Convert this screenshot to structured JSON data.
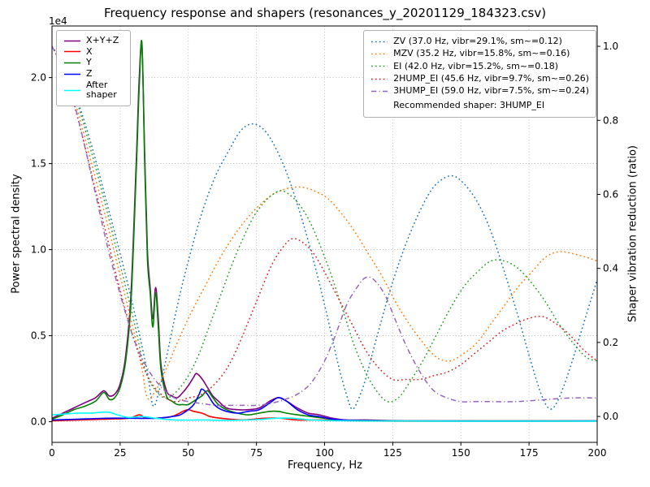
{
  "chart_data": {
    "type": "line",
    "title": "Frequency response and shapers (resonances_y_20201129_184323.csv)",
    "xlabel": "Frequency, Hz",
    "ylabel": "Power spectral density",
    "ylabel2": "Shaper vibration reduction (ratio)",
    "y_offset_label": "1e4",
    "recommended_shaper_note": "Recommended shaper: 3HUMP_EI",
    "axes": {
      "xlim": [
        0,
        200
      ],
      "ylim_left": [
        -0.12,
        2.3
      ],
      "ylim_right": [
        -0.07,
        1.055
      ],
      "psd_unit_multiplier": 10000,
      "grid": true,
      "x_ticks": [
        {
          "v": 0,
          "label": "0"
        },
        {
          "v": 25,
          "label": "25"
        },
        {
          "v": 50,
          "label": "50"
        },
        {
          "v": 75,
          "label": "75"
        },
        {
          "v": 100,
          "label": "100"
        },
        {
          "v": 125,
          "label": "125"
        },
        {
          "v": 150,
          "label": "150"
        },
        {
          "v": 175,
          "label": "175"
        },
        {
          "v": 200,
          "label": "200"
        }
      ],
      "y_ticks_left": [
        {
          "v": 0,
          "label": "0.0"
        },
        {
          "v": 0.5,
          "label": "0.5"
        },
        {
          "v": 1,
          "label": "1.0"
        },
        {
          "v": 1.5,
          "label": "1.5"
        },
        {
          "v": 2,
          "label": "2.0"
        }
      ],
      "y_ticks_right": [
        {
          "v": 0,
          "label": "0.0"
        },
        {
          "v": 0.2,
          "label": "0.2"
        },
        {
          "v": 0.4,
          "label": "0.4"
        },
        {
          "v": 0.6,
          "label": "0.6"
        },
        {
          "v": 0.8,
          "label": "0.8"
        },
        {
          "v": 1,
          "label": "1.0"
        }
      ]
    },
    "series": [
      {
        "name": "X+Y+Z",
        "legend": "X+Y+Z",
        "axis": "left",
        "color": "#800080",
        "style": "solid",
        "x": [
          0,
          4,
          8,
          12,
          16,
          19,
          21,
          23,
          25,
          27,
          29,
          31,
          32,
          33,
          34,
          35,
          36,
          37,
          38,
          39,
          40,
          42,
          44,
          46,
          48,
          50,
          52,
          53,
          55,
          57,
          59,
          61,
          64,
          68,
          72,
          76,
          80,
          83,
          86,
          90,
          94,
          98,
          103,
          108,
          115,
          130,
          160,
          200
        ],
        "y": [
          0.02,
          0.05,
          0.08,
          0.11,
          0.14,
          0.18,
          0.15,
          0.16,
          0.22,
          0.38,
          0.75,
          1.55,
          2.0,
          2.18,
          1.55,
          1.0,
          0.78,
          0.6,
          0.78,
          0.6,
          0.33,
          0.18,
          0.15,
          0.14,
          0.17,
          0.21,
          0.26,
          0.28,
          0.25,
          0.2,
          0.15,
          0.12,
          0.08,
          0.07,
          0.07,
          0.08,
          0.12,
          0.14,
          0.12,
          0.08,
          0.05,
          0.04,
          0.02,
          0.01,
          0.01,
          0.005,
          0.005,
          0.005
        ]
      },
      {
        "name": "X",
        "legend": "X",
        "axis": "left",
        "color": "#ff0000",
        "style": "solid",
        "x": [
          0,
          10,
          20,
          28,
          32,
          34,
          38,
          44,
          48,
          50,
          52,
          55,
          58,
          62,
          70,
          78,
          84,
          90,
          100,
          110,
          130,
          200
        ],
        "y": [
          0.005,
          0.01,
          0.015,
          0.02,
          0.04,
          0.025,
          0.02,
          0.03,
          0.06,
          0.07,
          0.06,
          0.05,
          0.03,
          0.02,
          0.01,
          0.02,
          0.02,
          0.01,
          0.01,
          0.005,
          0.003,
          0.003
        ]
      },
      {
        "name": "Y",
        "legend": "Y",
        "axis": "left",
        "color": "#008000",
        "style": "solid",
        "x": [
          0,
          4,
          8,
          12,
          16,
          19,
          21,
          23,
          25,
          27,
          29,
          31,
          32,
          33,
          34,
          35,
          36,
          37,
          38,
          39,
          40,
          42,
          44,
          46,
          48,
          50,
          53,
          55,
          57,
          59,
          61,
          64,
          68,
          72,
          76,
          80,
          83,
          86,
          90,
          95,
          100,
          105,
          110,
          120,
          140,
          170,
          200
        ],
        "y": [
          0.015,
          0.04,
          0.07,
          0.09,
          0.12,
          0.17,
          0.13,
          0.14,
          0.2,
          0.35,
          0.7,
          1.5,
          1.95,
          2.2,
          1.5,
          0.95,
          0.75,
          0.55,
          0.75,
          0.55,
          0.3,
          0.15,
          0.12,
          0.1,
          0.1,
          0.1,
          0.13,
          0.15,
          0.18,
          0.14,
          0.1,
          0.07,
          0.05,
          0.04,
          0.05,
          0.06,
          0.06,
          0.05,
          0.04,
          0.03,
          0.02,
          0.01,
          0.008,
          0.005,
          0.004,
          0.004,
          0.004
        ]
      },
      {
        "name": "Z",
        "legend": "Z",
        "axis": "left",
        "color": "#0000ff",
        "style": "solid",
        "x": [
          0,
          10,
          20,
          30,
          38,
          44,
          47,
          50,
          52,
          54,
          55,
          57,
          59,
          61,
          64,
          68,
          72,
          76,
          80,
          83,
          86,
          90,
          94,
          98,
          103,
          110,
          130,
          200
        ],
        "y": [
          0.01,
          0.015,
          0.02,
          0.02,
          0.02,
          0.03,
          0.04,
          0.07,
          0.1,
          0.16,
          0.19,
          0.16,
          0.11,
          0.08,
          0.06,
          0.05,
          0.06,
          0.07,
          0.11,
          0.14,
          0.12,
          0.07,
          0.04,
          0.03,
          0.015,
          0.008,
          0.004,
          0.004
        ]
      },
      {
        "name": "After shaper",
        "legend": "After shaper",
        "axis": "left",
        "color": "#00ffff",
        "style": "solid",
        "x": [
          0,
          5,
          10,
          14,
          18,
          21,
          24,
          28,
          33,
          38,
          45,
          55,
          65,
          75,
          82,
          88,
          95,
          105,
          120,
          150,
          200
        ],
        "y": [
          0.04,
          0.045,
          0.05,
          0.05,
          0.055,
          0.055,
          0.04,
          0.025,
          0.03,
          0.02,
          0.01,
          0.01,
          0.008,
          0.012,
          0.02,
          0.02,
          0.01,
          0.006,
          0.004,
          0.003,
          0.003
        ]
      },
      {
        "name": "ZV",
        "legend": "ZV (37.0 Hz, vibr=29.1%, sm~=0.12)",
        "axis": "right",
        "color": "#1f77b4",
        "style": "dotted",
        "x": [
          0,
          5,
          10,
          15,
          20,
          25,
          30,
          33,
          35,
          37,
          39,
          42,
          46,
          50,
          55,
          60,
          65,
          69,
          73,
          77,
          81,
          86,
          91,
          96,
          101,
          105,
          108,
          110,
          112,
          115,
          119,
          124,
          129,
          134,
          139,
          143,
          147,
          151,
          156,
          161,
          166,
          171,
          176,
          180,
          183,
          186,
          190,
          195,
          200
        ],
        "y": [
          1.0,
          0.94,
          0.84,
          0.72,
          0.58,
          0.44,
          0.29,
          0.19,
          0.12,
          0.03,
          0.06,
          0.16,
          0.3,
          0.42,
          0.55,
          0.65,
          0.72,
          0.77,
          0.79,
          0.78,
          0.74,
          0.66,
          0.55,
          0.42,
          0.27,
          0.14,
          0.06,
          0.02,
          0.04,
          0.1,
          0.21,
          0.34,
          0.45,
          0.54,
          0.61,
          0.64,
          0.65,
          0.63,
          0.58,
          0.5,
          0.39,
          0.27,
          0.14,
          0.05,
          0.02,
          0.05,
          0.13,
          0.25,
          0.37
        ]
      },
      {
        "name": "MZV",
        "legend": "MZV (35.2 Hz, vibr=15.8%, sm~=0.16)",
        "axis": "right",
        "color": "#ff7f0e",
        "style": "dotted",
        "x": [
          0,
          5,
          10,
          15,
          20,
          25,
          30,
          33,
          35,
          38,
          42,
          46,
          51,
          56,
          61,
          66,
          71,
          76,
          81,
          86,
          91,
          96,
          101,
          106,
          111,
          116,
          121,
          126,
          131,
          136,
          141,
          146,
          151,
          156,
          161,
          166,
          171,
          176,
          181,
          186,
          191,
          196,
          200
        ],
        "y": [
          1.0,
          0.93,
          0.81,
          0.67,
          0.53,
          0.38,
          0.23,
          0.13,
          0.05,
          0.07,
          0.13,
          0.2,
          0.28,
          0.35,
          0.42,
          0.48,
          0.53,
          0.57,
          0.6,
          0.615,
          0.62,
          0.61,
          0.59,
          0.55,
          0.5,
          0.44,
          0.38,
          0.31,
          0.25,
          0.2,
          0.16,
          0.15,
          0.17,
          0.2,
          0.25,
          0.3,
          0.35,
          0.39,
          0.43,
          0.445,
          0.44,
          0.43,
          0.42
        ]
      },
      {
        "name": "EI",
        "legend": "EI (42.0 Hz, vibr=15.2%, sm~=0.18)",
        "axis": "right",
        "color": "#2ca02c",
        "style": "dotted",
        "x": [
          0,
          5,
          10,
          15,
          20,
          25,
          30,
          34,
          38,
          42,
          46,
          50,
          54,
          58,
          62,
          66,
          70,
          74,
          78,
          81,
          84,
          87,
          91,
          95,
          99,
          103,
          107,
          111,
          115,
          119,
          123,
          127,
          131,
          136,
          141,
          146,
          151,
          156,
          161,
          166,
          171,
          176,
          181,
          186,
          191,
          196,
          200
        ],
        "y": [
          1.0,
          0.94,
          0.83,
          0.7,
          0.56,
          0.41,
          0.26,
          0.13,
          0.07,
          0.05,
          0.07,
          0.11,
          0.17,
          0.25,
          0.33,
          0.41,
          0.48,
          0.54,
          0.58,
          0.6,
          0.61,
          0.6,
          0.57,
          0.52,
          0.45,
          0.37,
          0.28,
          0.19,
          0.12,
          0.07,
          0.04,
          0.05,
          0.09,
          0.15,
          0.22,
          0.29,
          0.35,
          0.39,
          0.42,
          0.42,
          0.4,
          0.36,
          0.31,
          0.25,
          0.2,
          0.16,
          0.15
        ]
      },
      {
        "name": "2HUMP_EI",
        "legend": "2HUMP_EI (45.6 Hz, vibr=9.7%, sm~=0.26)",
        "axis": "right",
        "color": "#d62728",
        "style": "dotted",
        "x": [
          0,
          5,
          10,
          15,
          20,
          25,
          30,
          35,
          40,
          45,
          50,
          55,
          60,
          65,
          70,
          75,
          80,
          84,
          88,
          92,
          96,
          100,
          105,
          110,
          115,
          120,
          125,
          130,
          135,
          140,
          145,
          150,
          155,
          160,
          165,
          170,
          175,
          180,
          185,
          190,
          195,
          200
        ],
        "y": [
          1.0,
          0.92,
          0.79,
          0.64,
          0.49,
          0.34,
          0.21,
          0.11,
          0.06,
          0.04,
          0.05,
          0.06,
          0.09,
          0.14,
          0.22,
          0.31,
          0.4,
          0.45,
          0.48,
          0.47,
          0.44,
          0.39,
          0.32,
          0.25,
          0.18,
          0.13,
          0.1,
          0.1,
          0.1,
          0.11,
          0.12,
          0.14,
          0.17,
          0.2,
          0.23,
          0.25,
          0.265,
          0.27,
          0.25,
          0.22,
          0.18,
          0.15
        ]
      },
      {
        "name": "3HUMP_EI",
        "legend": "3HUMP_EI (59.0 Hz, vibr=7.5%, sm~=0.24)",
        "axis": "right",
        "color": "#9467bd",
        "style": "dashdot",
        "x": [
          0,
          4,
          8,
          12,
          16,
          20,
          25,
          30,
          35,
          40,
          45,
          50,
          55,
          60,
          65,
          70,
          75,
          80,
          85,
          90,
          95,
          100,
          104,
          108,
          112,
          115,
          118,
          122,
          126,
          130,
          135,
          140,
          145,
          150,
          155,
          160,
          170,
          180,
          190,
          200
        ],
        "y": [
          1.0,
          0.94,
          0.85,
          0.73,
          0.6,
          0.47,
          0.33,
          0.21,
          0.13,
          0.08,
          0.05,
          0.04,
          0.035,
          0.03,
          0.03,
          0.03,
          0.03,
          0.035,
          0.045,
          0.06,
          0.09,
          0.15,
          0.22,
          0.3,
          0.35,
          0.375,
          0.37,
          0.33,
          0.26,
          0.19,
          0.12,
          0.07,
          0.05,
          0.04,
          0.04,
          0.04,
          0.04,
          0.045,
          0.05,
          0.05
        ]
      }
    ]
  }
}
